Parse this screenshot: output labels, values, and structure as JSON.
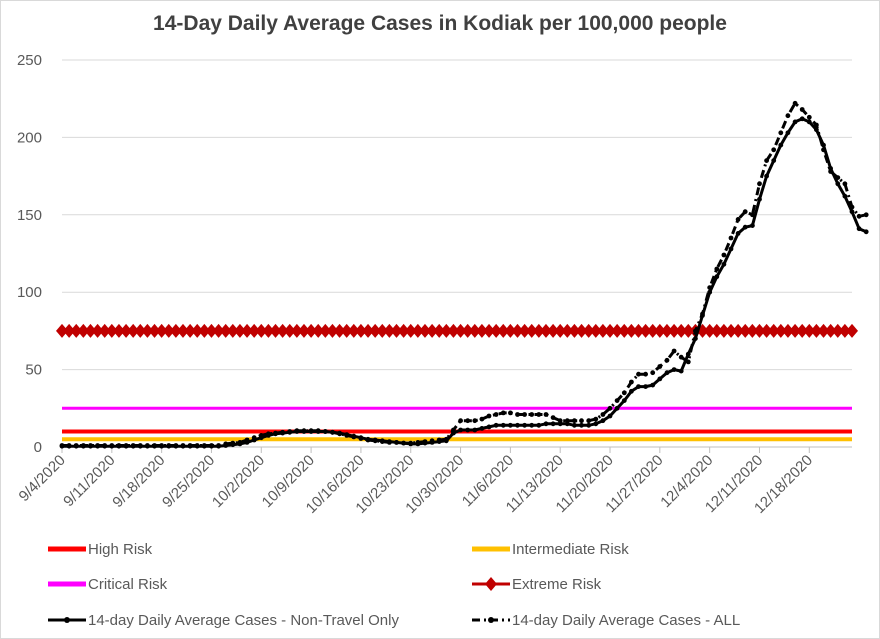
{
  "chart_data": {
    "type": "line",
    "title": "14-Day Daily Average Cases in Kodiak per 100,000 people",
    "xlabel": "",
    "ylabel": "",
    "ylim": [
      0,
      250
    ],
    "yticks": [
      0,
      50,
      100,
      150,
      200,
      250
    ],
    "xtick_labels": [
      "9/4/2020",
      "9/11/2020",
      "9/18/2020",
      "9/25/2020",
      "10/2/2020",
      "10/9/2020",
      "10/16/2020",
      "10/23/2020",
      "10/30/2020",
      "11/6/2020",
      "11/13/2020",
      "11/20/2020",
      "11/27/2020",
      "12/4/2020",
      "12/11/2020",
      "12/18/2020"
    ],
    "x_start": "9/4/2020",
    "grid": "horizontal",
    "legend_position": "bottom",
    "series": [
      {
        "name": "High Risk",
        "color": "#ff0000",
        "style": "solid",
        "values": [
          10,
          10
        ]
      },
      {
        "name": "Intermediate Risk",
        "color": "#ffc000",
        "style": "solid",
        "values": [
          5,
          5
        ]
      },
      {
        "name": "Critical Risk",
        "color": "#ff00ff",
        "style": "solid",
        "values": [
          25,
          25
        ]
      },
      {
        "name": "Extreme Risk",
        "color": "#c00000",
        "style": "diamond",
        "values": [
          75,
          75
        ]
      },
      {
        "name": "14-day Daily Average Cases - Non-Travel Only",
        "color": "#000000",
        "style": "solid",
        "values": [
          0.5,
          0.5,
          0.5,
          0.5,
          0.5,
          0.5,
          0.5,
          0.5,
          0.5,
          0.5,
          0.5,
          0.5,
          0.5,
          0.5,
          0.5,
          0.5,
          0.5,
          0.5,
          0.5,
          0.5,
          0.5,
          0.5,
          0.5,
          1,
          1.5,
          2,
          3,
          4.5,
          6,
          7.5,
          8.5,
          9,
          9.5,
          10,
          10,
          10,
          10,
          10,
          9.5,
          9,
          8,
          7,
          6,
          5,
          4.5,
          4,
          3.5,
          3,
          2.5,
          2,
          2,
          2.5,
          3,
          3.5,
          4,
          9,
          11,
          11,
          11,
          12,
          13,
          14,
          14,
          14,
          14,
          14,
          14,
          14,
          15,
          15,
          15,
          15,
          14,
          14,
          14,
          15,
          17,
          20,
          25,
          30,
          36,
          39,
          39,
          40,
          44,
          48,
          50,
          49,
          60,
          70,
          85,
          100,
          110,
          118,
          128,
          138,
          142,
          143,
          160,
          175,
          185,
          195,
          203,
          210,
          212,
          210,
          205,
          195,
          180,
          170,
          162,
          152,
          141,
          139
        ]
      },
      {
        "name": "14-day Daily Average Cases - ALL",
        "color": "#000000",
        "style": "dash-dot",
        "values": [
          1,
          1,
          1,
          1,
          1,
          1,
          1,
          1,
          1,
          1,
          1,
          1,
          1,
          1,
          1,
          1,
          1,
          1,
          1,
          1,
          1,
          1,
          1,
          2,
          2.5,
          3,
          4.5,
          6,
          7.5,
          8.5,
          9,
          9.5,
          10,
          10.5,
          10.5,
          10.5,
          10.5,
          10,
          9.5,
          8.5,
          7.5,
          6.5,
          5.5,
          4.5,
          4,
          3.5,
          3,
          3,
          2.5,
          2.5,
          3,
          3.5,
          4,
          4.5,
          5,
          11,
          17,
          17,
          17,
          18,
          20,
          21,
          22,
          22,
          21,
          21,
          21,
          21,
          21,
          19,
          17,
          17,
          17,
          17,
          17,
          18,
          21,
          25,
          30,
          35,
          42,
          47,
          47,
          48,
          52,
          56,
          62,
          58,
          55,
          75,
          86,
          103,
          115,
          124,
          135,
          147,
          152,
          150,
          170,
          185,
          192,
          203,
          214,
          222,
          218,
          213,
          208,
          192,
          178,
          174,
          170,
          155,
          149,
          150
        ]
      }
    ]
  },
  "legend": {
    "items": [
      {
        "label": "High Risk",
        "color": "#ff0000"
      },
      {
        "label": "Intermediate Risk",
        "color": "#ffc000"
      },
      {
        "label": "Critical Risk",
        "color": "#ff00ff"
      },
      {
        "label": "Extreme Risk",
        "color": "#c00000"
      },
      {
        "label": "14-day Daily Average Cases - Non-Travel Only",
        "color": "#000000"
      },
      {
        "label": "14-day Daily Average Cases - ALL",
        "color": "#000000"
      }
    ]
  }
}
